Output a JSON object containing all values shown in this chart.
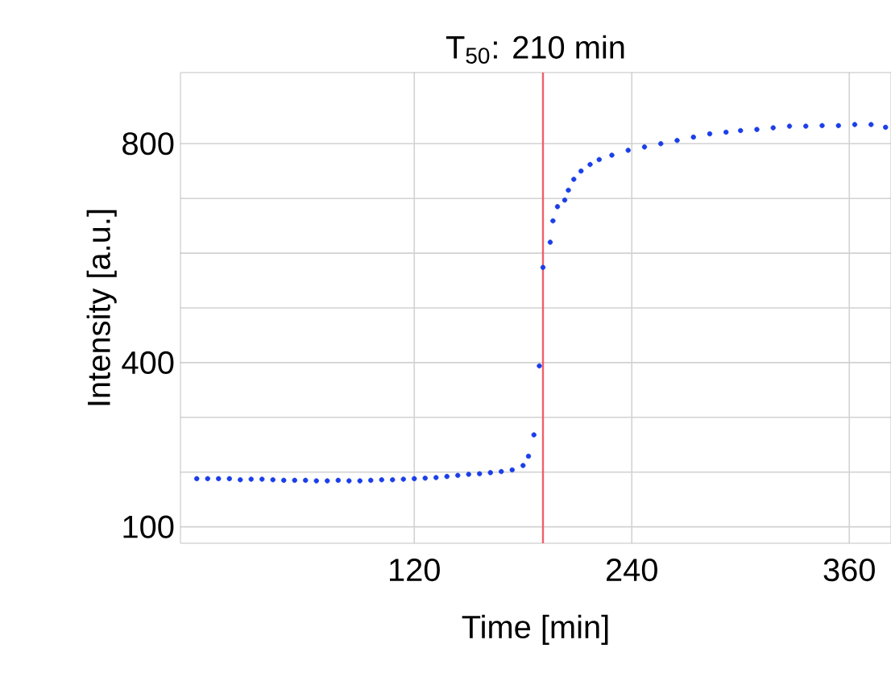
{
  "chart_data": {
    "type": "scatter",
    "title": "T$_{50}$: 210 min",
    "xlabel": "Time [min]",
    "ylabel": "Intensity [a.u.]",
    "x": [
      0,
      6,
      12,
      18,
      24,
      30,
      36,
      42,
      48,
      54,
      60,
      66,
      72,
      78,
      84,
      90,
      96,
      102,
      108,
      114,
      120,
      126,
      132,
      138,
      144,
      150,
      156,
      162,
      168,
      174,
      180,
      183,
      186,
      189,
      191,
      195,
      196.5,
      199,
      203,
      205,
      208,
      212,
      217,
      222,
      229,
      238,
      247,
      256,
      265,
      274,
      283,
      292,
      300,
      309,
      318,
      327,
      336,
      345,
      354,
      363,
      372,
      380
    ],
    "series": [
      {
        "color": "#1a3ee8",
        "values": [
          188,
          188,
          188,
          188,
          186,
          187,
          187,
          186,
          185,
          185,
          185,
          184,
          184,
          185,
          184,
          184,
          185,
          186,
          186,
          187,
          188,
          189,
          190,
          192,
          194,
          196,
          197,
          199,
          201,
          204,
          212,
          229,
          268,
          394,
          574,
          620,
          659,
          685,
          697,
          715,
          735,
          750,
          762,
          771,
          779,
          788,
          794,
          800,
          806,
          812,
          818,
          821,
          824,
          826,
          829,
          832,
          832,
          833,
          833,
          835,
          835,
          830
        ]
      }
    ],
    "xlim": [
      -9,
      383
    ],
    "ylim": [
      70,
      930
    ],
    "xticks": [
      120,
      240,
      360
    ],
    "yticks": [
      100,
      {
        "value": 200,
        "label": null
      },
      {
        "value": 300,
        "label": null
      },
      400,
      {
        "value": 500,
        "label": null
      },
      {
        "value": 600,
        "label": null
      },
      {
        "value": 700,
        "label": null
      },
      800
    ],
    "grid": true,
    "marker": "circle",
    "ref_lines": [
      {
        "axis": "x",
        "value": 191,
        "color": "#f0606a"
      }
    ]
  }
}
